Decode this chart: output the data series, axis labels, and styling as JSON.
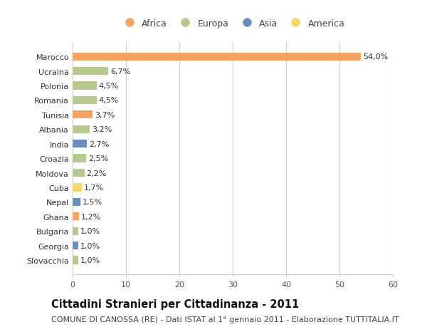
{
  "countries": [
    "Marocco",
    "Ucraina",
    "Polonia",
    "Romania",
    "Tunisia",
    "Albania",
    "India",
    "Croazia",
    "Moldova",
    "Cuba",
    "Nepal",
    "Ghana",
    "Bulgaria",
    "Georgia",
    "Slovacchia"
  ],
  "values": [
    54.0,
    6.7,
    4.5,
    4.5,
    3.7,
    3.2,
    2.7,
    2.5,
    2.2,
    1.7,
    1.5,
    1.2,
    1.0,
    1.0,
    1.0
  ],
  "labels": [
    "54,0%",
    "6,7%",
    "4,5%",
    "4,5%",
    "3,7%",
    "3,2%",
    "2,7%",
    "2,5%",
    "2,2%",
    "1,7%",
    "1,5%",
    "1,2%",
    "1,0%",
    "1,0%",
    "1,0%"
  ],
  "continents": [
    "Africa",
    "Europa",
    "Europa",
    "Europa",
    "Africa",
    "Europa",
    "Asia",
    "Europa",
    "Europa",
    "America",
    "Asia",
    "Africa",
    "Europa",
    "Asia",
    "Europa"
  ],
  "continent_colors": {
    "Africa": "#F4A460",
    "Europa": "#B5C98E",
    "Asia": "#6B8CBE",
    "America": "#F5D76E"
  },
  "legend_order": [
    "Africa",
    "Europa",
    "Asia",
    "America"
  ],
  "xlim": [
    0,
    60
  ],
  "xticks": [
    0,
    10,
    20,
    30,
    40,
    50,
    60
  ],
  "title": "Cittadini Stranieri per Cittadinanza - 2011",
  "subtitle": "COMUNE DI CANOSSA (RE) - Dati ISTAT al 1° gennaio 2011 - Elaborazione TUTTITALIA.IT",
  "bg_color": "#ffffff",
  "grid_color": "#cccccc",
  "bar_height": 0.55,
  "title_fontsize": 10.5,
  "subtitle_fontsize": 8,
  "tick_fontsize": 8,
  "label_fontsize": 8
}
